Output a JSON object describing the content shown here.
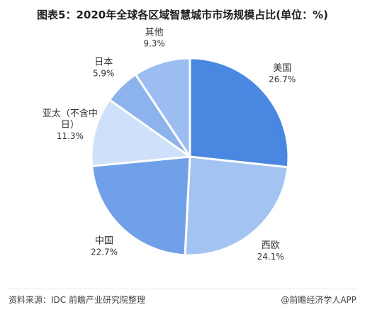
{
  "chart_data": {
    "type": "pie",
    "title": "图表5：2020年全球各区域智慧城市市场规模占比(单位：%)",
    "slices": [
      {
        "label": "美国",
        "value": 26.7,
        "display": "26.7%",
        "color": "#4a87e0"
      },
      {
        "label": "西欧",
        "value": 24.1,
        "display": "24.1%",
        "color": "#a3c4f3"
      },
      {
        "label": "中国",
        "value": 22.7,
        "display": "22.7%",
        "color": "#6fa0e8"
      },
      {
        "label": "亚太（不含中日）",
        "label_lines": [
          "亚太（不含中",
          "日）"
        ],
        "value": 11.3,
        "display": "11.3%",
        "color": "#cfe1fa"
      },
      {
        "label": "日本",
        "value": 5.9,
        "display": "5.9%",
        "color": "#8db3ed"
      },
      {
        "label": "其他",
        "value": 9.3,
        "display": "9.3%",
        "color": "#9bbdf1"
      }
    ],
    "start_angle_deg": 0,
    "direction": "clockwise",
    "legend": "none"
  },
  "footer": {
    "source": "资料来源：IDC 前瞻产业研究院整理",
    "brand": "@前瞻经济学人APP"
  }
}
